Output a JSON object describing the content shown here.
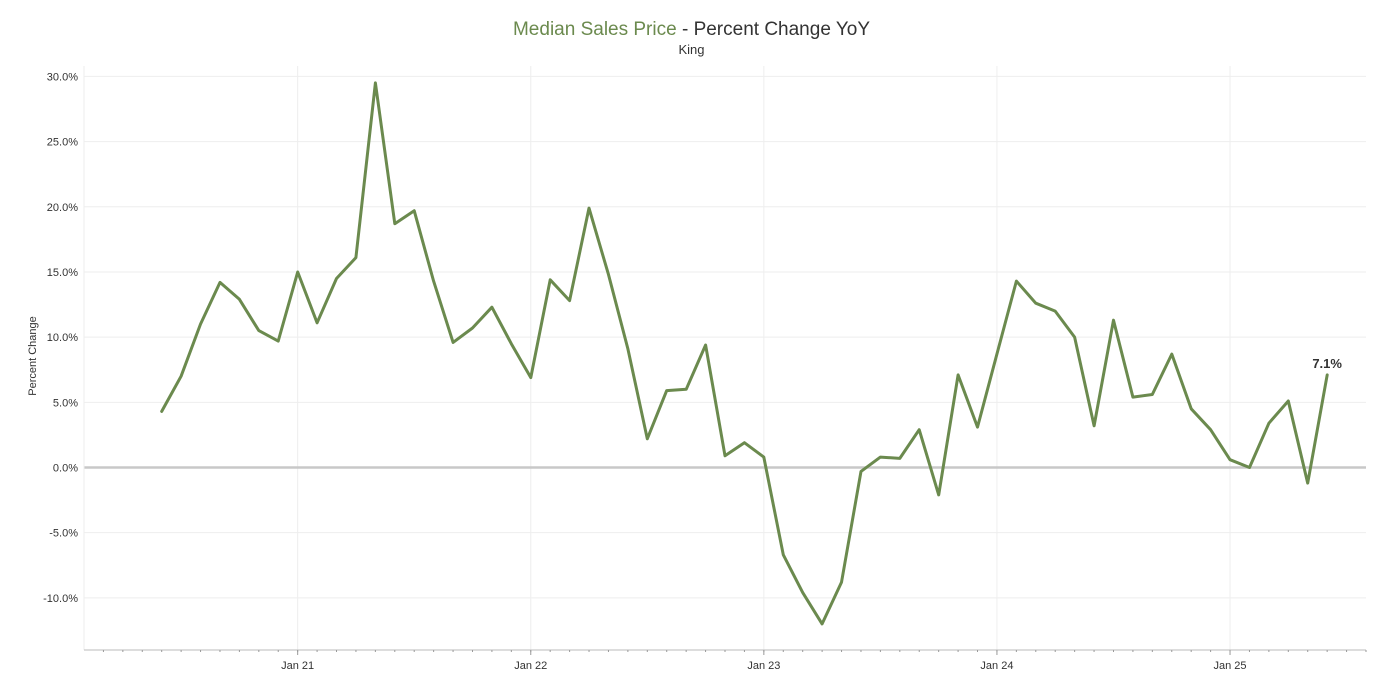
{
  "header": {
    "title_accent": "Median Sales Price",
    "title_rest": " - Percent Change YoY",
    "subtitle": "King"
  },
  "colors": {
    "line": "#6b8a4e",
    "zero_line": "#c8c8c8",
    "grid": "#eeeeee"
  },
  "chart_data": {
    "type": "line",
    "title": "Median Sales Price - Percent Change YoY",
    "subtitle": "King",
    "ylabel": "Percent Change",
    "xlabel": "",
    "ylim": [
      -14,
      30.8
    ],
    "yticks": [
      30,
      25,
      20,
      15,
      10,
      5,
      0,
      -5,
      -10
    ],
    "ytick_labels": [
      "30.0%",
      "25.0%",
      "20.0%",
      "15.0%",
      "10.0%",
      "5.0%",
      "0.0%",
      "-5.0%",
      "-10.0%"
    ],
    "xticks": [
      "2021-01",
      "2022-01",
      "2023-01",
      "2024-01",
      "2025-01"
    ],
    "xtick_labels": [
      "Jan 21",
      "Jan 22",
      "Jan 23",
      "Jan 24",
      "Jan 25"
    ],
    "xlim": [
      "2020-02",
      "2025-08"
    ],
    "grid": true,
    "end_label": "7.1%",
    "series": [
      {
        "x": [
          "2020-06",
          "2020-07",
          "2020-08",
          "2020-09",
          "2020-10",
          "2020-11",
          "2020-12",
          "2021-01",
          "2021-02",
          "2021-03",
          "2021-04",
          "2021-05",
          "2021-06",
          "2021-07",
          "2021-08",
          "2021-09",
          "2021-10",
          "2021-11",
          "2021-12",
          "2022-01",
          "2022-02",
          "2022-03",
          "2022-04",
          "2022-05",
          "2022-06",
          "2022-07",
          "2022-08",
          "2022-09",
          "2022-10",
          "2022-11",
          "2022-12",
          "2023-01",
          "2023-02",
          "2023-03",
          "2023-04",
          "2023-05",
          "2023-06",
          "2023-07",
          "2023-08",
          "2023-09",
          "2023-10",
          "2023-11",
          "2023-12",
          "2024-01",
          "2024-02",
          "2024-03",
          "2024-04",
          "2024-05",
          "2024-06",
          "2024-07",
          "2024-08",
          "2024-09",
          "2024-10",
          "2024-11",
          "2024-12",
          "2025-01",
          "2025-02",
          "2025-03",
          "2025-04",
          "2025-05",
          "2025-06"
        ],
        "values": [
          4.3,
          7.0,
          11.0,
          14.2,
          12.9,
          10.5,
          9.7,
          15.0,
          11.1,
          14.5,
          16.1,
          29.5,
          18.7,
          19.7,
          14.3,
          9.6,
          10.7,
          12.3,
          9.5,
          6.9,
          14.4,
          12.8,
          19.9,
          14.8,
          9.1,
          2.2,
          5.9,
          6.0,
          9.4,
          0.9,
          1.9,
          0.8,
          -6.7,
          -9.6,
          -12.0,
          -8.8,
          -0.3,
          0.8,
          0.7,
          2.9,
          -2.1,
          7.1,
          3.1,
          8.7,
          14.3,
          12.6,
          12.0,
          10.0,
          3.2,
          11.3,
          5.4,
          5.6,
          8.7,
          4.5,
          2.9,
          0.6,
          0.0,
          3.4,
          5.1,
          -1.2,
          7.1
        ]
      }
    ]
  }
}
